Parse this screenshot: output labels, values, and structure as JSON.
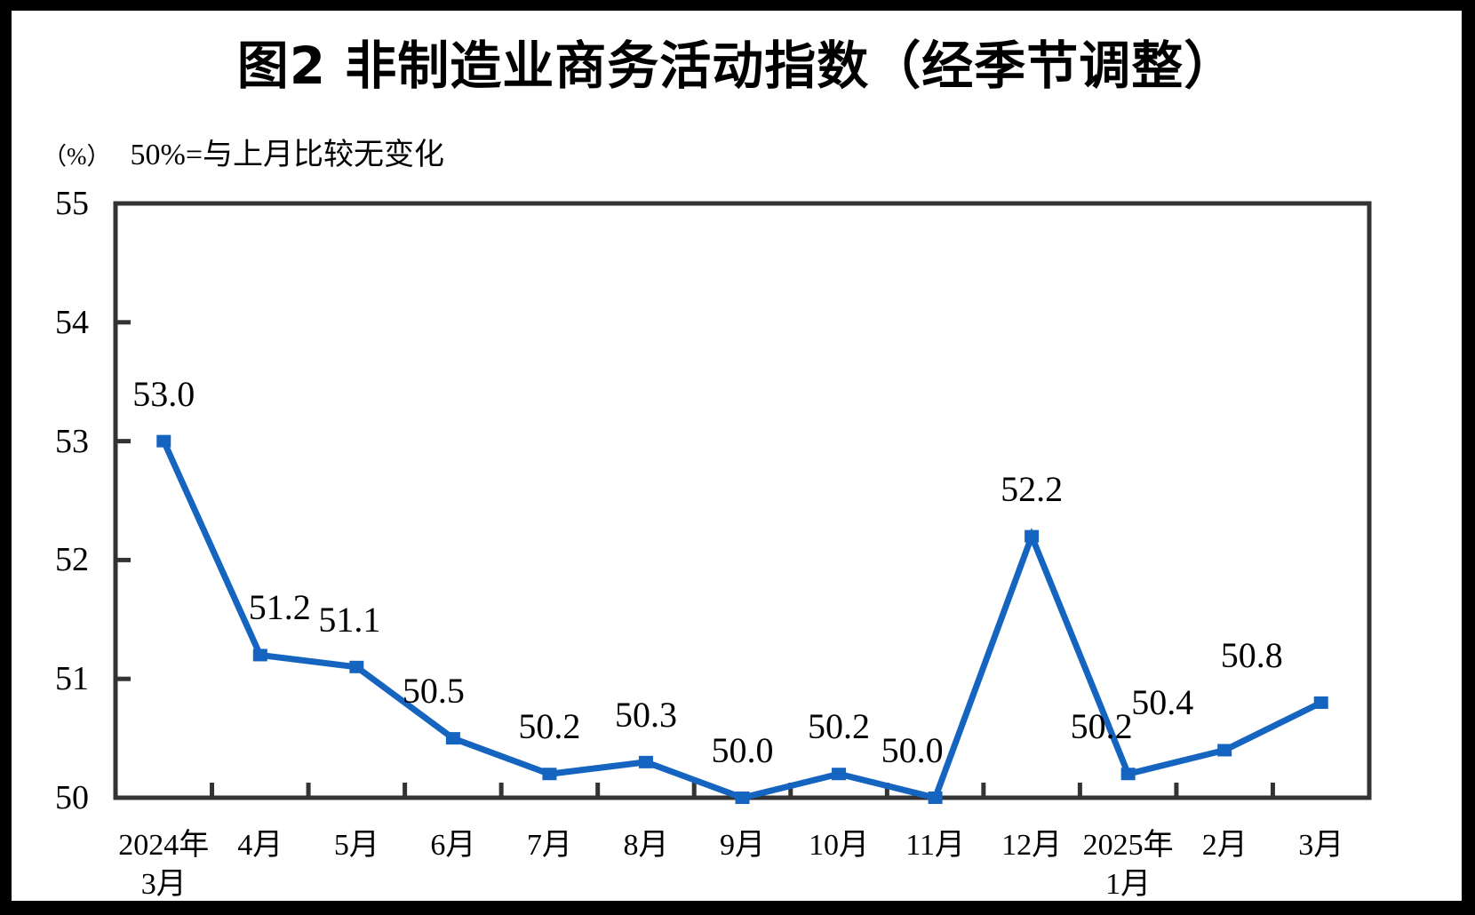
{
  "chart_data": {
    "type": "line",
    "title": "图2 非制造业商务活动指数（经季节调整）",
    "unit_label": "（%）",
    "annotation": "50%=与上月比较无变化",
    "series_name": "非制造业商务活动指数",
    "categories": [
      [
        "2024年",
        "3月"
      ],
      [
        "4月"
      ],
      [
        "5月"
      ],
      [
        "6月"
      ],
      [
        "7月"
      ],
      [
        "8月"
      ],
      [
        "9月"
      ],
      [
        "10月"
      ],
      [
        "11月"
      ],
      [
        "12月"
      ],
      [
        "2025年",
        "1月"
      ],
      [
        "2月"
      ],
      [
        "3月"
      ]
    ],
    "values": [
      53.0,
      51.2,
      51.1,
      50.5,
      50.2,
      50.3,
      50.0,
      50.2,
      50.0,
      52.2,
      50.2,
      50.4,
      50.8
    ],
    "point_labels": [
      "53.0",
      "51.2",
      "51.1",
      "50.5",
      "50.2",
      "50.3",
      "50.0",
      "50.2",
      "50.0",
      "52.2",
      "50.2",
      "50.4",
      "50.8"
    ],
    "y_ticks": [
      50,
      51,
      52,
      53,
      54,
      55
    ],
    "ylim": [
      50,
      55
    ],
    "xlabel": "",
    "ylabel": "",
    "grid": false,
    "legend": "none",
    "colors": {
      "line": "#1565C0",
      "marker": "#1565C0",
      "axis": "#333333",
      "text": "#000000",
      "background": "#ffffff",
      "frame": "#000000"
    },
    "layout": {
      "label_dx": [
        0,
        22,
        -8,
        -22,
        0,
        0,
        0,
        0,
        -26,
        0,
        -30,
        -70,
        -78
      ],
      "label_gap": 74,
      "tick_style": "inside"
    }
  }
}
